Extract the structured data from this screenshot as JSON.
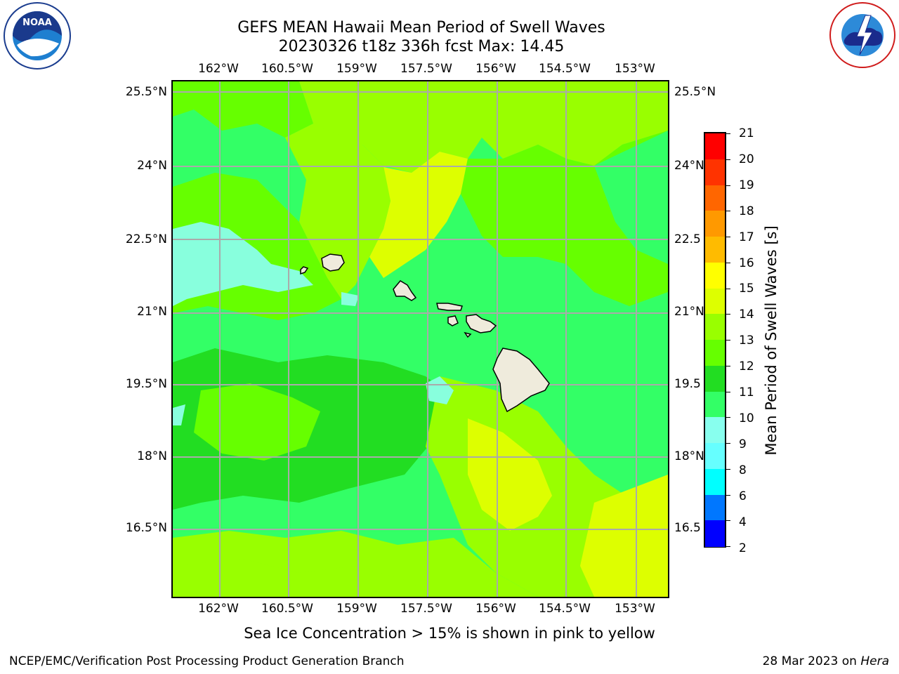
{
  "header": {
    "title_line1": "GEFS MEAN Hawaii Mean Period of Swell Waves",
    "title_line2": "20230326 t18z 336h fcst   Max: 14.45"
  },
  "logos": {
    "left": "noaa-logo",
    "right": "nws-logo",
    "left_ring_text": "NATIONAL OCEANIC AND ATMOSPHERIC ADMINISTRATION · U.S. DEPARTMENT OF COMMERCE",
    "left_center_text": "NOAA",
    "right_ring_text": "NATIONAL WEATHER SERVICE"
  },
  "map": {
    "lon_labels": [
      "162°W",
      "160.5°W",
      "159°W",
      "157.5°W",
      "156°W",
      "154.5°W",
      "153°W"
    ],
    "lat_labels_left": [
      "25.5°N",
      "24°N",
      "22.5°N",
      "21°N",
      "19.5°N",
      "18°N",
      "16.5°N"
    ],
    "lat_labels_right": [
      "25.5°N",
      "24°N",
      "22.5",
      "21°N",
      "19.5",
      "18°N",
      "16.5"
    ],
    "land_color": "#efebdc",
    "gridline_color": "#aaaaaa",
    "islands": [
      "Niihau",
      "Kauai",
      "Oahu",
      "Molokai",
      "Lanai",
      "Maui",
      "Kahoolawe",
      "Hawaii"
    ]
  },
  "colorbar": {
    "title": "Mean Period of Swell Waves [s]",
    "tick_labels": [
      "21",
      "20",
      "19",
      "18",
      "17",
      "16",
      "15",
      "14",
      "13",
      "12",
      "11",
      "10",
      "9",
      "8",
      "6",
      "4",
      "2"
    ],
    "colors_top_to_bottom": [
      "#ff0000",
      "#ff3300",
      "#ff5500",
      "#ff7700",
      "#ff9900",
      "#ffbb00",
      "#ffdd00",
      "#ffff00",
      "#ddff00",
      "#99ff00",
      "#66ff00",
      "#22dd22",
      "#33ff66",
      "#88ffdd",
      "#66ffff",
      "#33eeff",
      "#00ffff",
      "#0099ff",
      "#0055ff",
      "#0000ff"
    ]
  },
  "note": "Sea Ice Concentration > 15% is shown in pink to yellow",
  "footer": {
    "left": "NCEP/EMC/Verification Post Processing Product Generation Branch",
    "right_date": "28 Mar 2023 on",
    "right_host": "Hera"
  }
}
